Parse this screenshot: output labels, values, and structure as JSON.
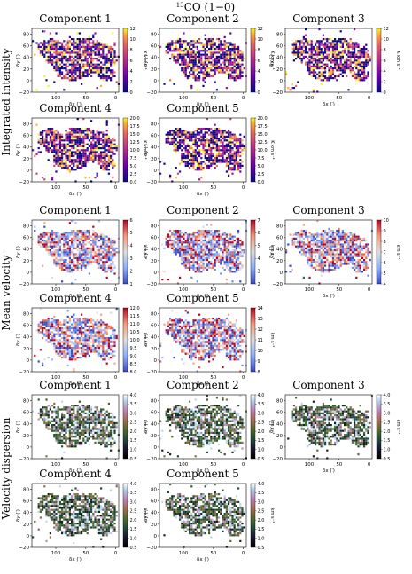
{
  "figure": {
    "title_main": "CO (1−0)",
    "title_sup": "13"
  },
  "rows": [
    {
      "label": "Integrated intensity",
      "cmap": "plasma",
      "unit": "K km s⁻¹"
    },
    {
      "label": "Mean velocity",
      "cmap": "coolwarm",
      "unit": "km s⁻¹"
    },
    {
      "label": "Velocity dispersion",
      "cmap": "cubehelix",
      "unit": "km s⁻¹"
    }
  ],
  "chart_data": [
    {
      "type": "heatmap",
      "row": 0,
      "title": "Component 1",
      "xlabel": "δx (′)",
      "ylabel": "δy (′)",
      "xticks": [
        "100",
        "50",
        "0"
      ],
      "yticks": [
        "80",
        "60",
        "40",
        "20",
        "0",
        "−20"
      ],
      "xlim": [
        140,
        -5
      ],
      "ylim": [
        -20,
        90
      ],
      "colorbar": {
        "min": 0,
        "max": 12,
        "ticks": [
          "12",
          "10",
          "8",
          "6",
          "4",
          "2",
          "0"
        ],
        "label": "K km s⁻¹"
      }
    },
    {
      "type": "heatmap",
      "row": 0,
      "title": "Component 2",
      "xlabel": "δx (′)",
      "ylabel": "δy (′)",
      "xticks": [
        "100",
        "50",
        "0"
      ],
      "yticks": [
        "80",
        "60",
        "40",
        "20",
        "0",
        "−20"
      ],
      "xlim": [
        140,
        -5
      ],
      "ylim": [
        -20,
        90
      ],
      "colorbar": {
        "min": 0,
        "max": 12,
        "ticks": [
          "12",
          "10",
          "8",
          "6",
          "4",
          "2",
          "0"
        ],
        "label": "K km s⁻¹"
      }
    },
    {
      "type": "heatmap",
      "row": 0,
      "title": "Component 3",
      "xlabel": "δx (′)",
      "ylabel": "δy (′)",
      "xticks": [
        "100",
        "50",
        "0"
      ],
      "yticks": [
        "80",
        "60",
        "40",
        "20",
        "0",
        "−20"
      ],
      "xlim": [
        140,
        -5
      ],
      "ylim": [
        -20,
        90
      ],
      "colorbar": {
        "min": 0,
        "max": 12,
        "ticks": [
          "12",
          "10",
          "8",
          "6",
          "4",
          "2",
          "0"
        ],
        "label": "K km s⁻¹"
      }
    },
    {
      "type": "heatmap",
      "row": 0,
      "title": "Component 4",
      "xlabel": "δx (′)",
      "ylabel": "δy (′)",
      "xticks": [
        "100",
        "50",
        "0"
      ],
      "yticks": [
        "80",
        "60",
        "40",
        "20",
        "0",
        "−20"
      ],
      "xlim": [
        140,
        -5
      ],
      "ylim": [
        -20,
        90
      ],
      "colorbar": {
        "min": 0,
        "max": 20,
        "ticks": [
          "20.0",
          "17.5",
          "15.0",
          "12.5",
          "10.0",
          "7.5",
          "5.0",
          "2.5",
          "0.0"
        ],
        "label": "K km s⁻¹"
      }
    },
    {
      "type": "heatmap",
      "row": 0,
      "title": "Component 5",
      "xlabel": "δx (′)",
      "ylabel": "δy (′)",
      "xticks": [
        "100",
        "50",
        "0"
      ],
      "yticks": [
        "80",
        "60",
        "40",
        "20",
        "0",
        "−20"
      ],
      "xlim": [
        140,
        -5
      ],
      "ylim": [
        -20,
        90
      ],
      "colorbar": {
        "min": 0,
        "max": 20,
        "ticks": [
          "20.0",
          "17.5",
          "15.0",
          "12.5",
          "10.0",
          "7.5",
          "5.0",
          "2.5",
          "0.0"
        ],
        "label": "K km s⁻¹"
      }
    },
    {
      "type": "heatmap",
      "row": 1,
      "title": "Component 1",
      "xlabel": "δx (′)",
      "ylabel": "δy (′)",
      "xticks": [
        "100",
        "50",
        "0"
      ],
      "yticks": [
        "80",
        "60",
        "40",
        "20",
        "0",
        "−20"
      ],
      "xlim": [
        140,
        -5
      ],
      "ylim": [
        -20,
        90
      ],
      "colorbar": {
        "min": 1,
        "max": 6,
        "ticks": [
          "6",
          "5",
          "4",
          "3",
          "2",
          "1"
        ],
        "label": "km s⁻¹"
      }
    },
    {
      "type": "heatmap",
      "row": 1,
      "title": "Component 2",
      "xlabel": "δx (′)",
      "ylabel": "δy (′)",
      "xticks": [
        "100",
        "50",
        "0"
      ],
      "yticks": [
        "80",
        "60",
        "40",
        "20",
        "0",
        "−20"
      ],
      "xlim": [
        140,
        -5
      ],
      "ylim": [
        -20,
        90
      ],
      "colorbar": {
        "min": 2,
        "max": 7,
        "ticks": [
          "7",
          "6",
          "5",
          "4",
          "3",
          "2"
        ],
        "label": "km s⁻¹"
      }
    },
    {
      "type": "heatmap",
      "row": 1,
      "title": "Component 3",
      "xlabel": "δx (′)",
      "ylabel": "δy (′)",
      "xticks": [
        "100",
        "50",
        "0"
      ],
      "yticks": [
        "80",
        "60",
        "40",
        "20",
        "0",
        "−20"
      ],
      "xlim": [
        140,
        -5
      ],
      "ylim": [
        -20,
        90
      ],
      "colorbar": {
        "min": 4,
        "max": 10,
        "ticks": [
          "10",
          "9",
          "8",
          "7",
          "6",
          "5",
          "4"
        ],
        "label": "km s⁻¹"
      }
    },
    {
      "type": "heatmap",
      "row": 1,
      "title": "Component 4",
      "xlabel": "δx (′)",
      "ylabel": "δy (′)",
      "xticks": [
        "100",
        "50",
        "0"
      ],
      "yticks": [
        "80",
        "60",
        "40",
        "20",
        "0",
        "−20"
      ],
      "xlim": [
        140,
        -5
      ],
      "ylim": [
        -20,
        90
      ],
      "colorbar": {
        "min": 8,
        "max": 12,
        "ticks": [
          "12.0",
          "11.5",
          "11.0",
          "10.5",
          "10.0",
          "9.5",
          "9.0",
          "8.5",
          "8.0"
        ],
        "label": "km s⁻¹"
      }
    },
    {
      "type": "heatmap",
      "row": 1,
      "title": "Component 5",
      "xlabel": "δx (′)",
      "ylabel": "δy (′)",
      "xticks": [
        "100",
        "50",
        "0"
      ],
      "yticks": [
        "80",
        "60",
        "40",
        "20",
        "0",
        "−20"
      ],
      "xlim": [
        140,
        -5
      ],
      "ylim": [
        -20,
        90
      ],
      "colorbar": {
        "min": 8,
        "max": 14,
        "ticks": [
          "14",
          "13",
          "12",
          "11",
          "10",
          "9",
          "8"
        ],
        "label": "km s⁻¹"
      }
    },
    {
      "type": "heatmap",
      "row": 2,
      "title": "Component 1",
      "xlabel": "δx (′)",
      "ylabel": "δy (′)",
      "xticks": [
        "100",
        "50",
        "0"
      ],
      "yticks": [
        "80",
        "60",
        "40",
        "20",
        "0",
        "−20"
      ],
      "xlim": [
        140,
        -5
      ],
      "ylim": [
        -20,
        90
      ],
      "colorbar": {
        "min": 0.5,
        "max": 4,
        "ticks": [
          "4.0",
          "3.5",
          "3.0",
          "2.5",
          "2.0",
          "1.5",
          "1.0",
          "0.5"
        ],
        "label": "km s⁻¹"
      }
    },
    {
      "type": "heatmap",
      "row": 2,
      "title": "Component 2",
      "xlabel": "δx (′)",
      "ylabel": "δy (′)",
      "xticks": [
        "100",
        "50",
        "0"
      ],
      "yticks": [
        "80",
        "60",
        "40",
        "20",
        "0",
        "−20"
      ],
      "xlim": [
        140,
        -5
      ],
      "ylim": [
        -20,
        90
      ],
      "colorbar": {
        "min": 0.5,
        "max": 4,
        "ticks": [
          "4.0",
          "3.5",
          "3.0",
          "2.5",
          "2.0",
          "1.5",
          "1.0",
          "0.5"
        ],
        "label": "km s⁻¹"
      }
    },
    {
      "type": "heatmap",
      "row": 2,
      "title": "Component 3",
      "xlabel": "δx (′)",
      "ylabel": "δy (′)",
      "xticks": [
        "100",
        "50",
        "0"
      ],
      "yticks": [
        "80",
        "60",
        "40",
        "20",
        "0",
        "−20"
      ],
      "xlim": [
        140,
        -5
      ],
      "ylim": [
        -20,
        90
      ],
      "colorbar": {
        "min": 0.5,
        "max": 4,
        "ticks": [
          "4.0",
          "3.5",
          "3.0",
          "2.5",
          "2.0",
          "1.5",
          "1.0",
          "0.5"
        ],
        "label": "km s⁻¹"
      }
    },
    {
      "type": "heatmap",
      "row": 2,
      "title": "Component 4",
      "xlabel": "δx (′)",
      "ylabel": "δy (′)",
      "xticks": [
        "100",
        "50",
        "0"
      ],
      "yticks": [
        "80",
        "60",
        "40",
        "20",
        "0",
        "−20"
      ],
      "xlim": [
        140,
        -5
      ],
      "ylim": [
        -20,
        90
      ],
      "colorbar": {
        "min": 0.5,
        "max": 4,
        "ticks": [
          "4.0",
          "3.5",
          "3.0",
          "2.5",
          "2.0",
          "1.5",
          "1.0",
          "0.5"
        ],
        "label": "km s⁻¹"
      }
    },
    {
      "type": "heatmap",
      "row": 2,
      "title": "Component 5",
      "xlabel": "δx (′)",
      "ylabel": "δy (′)",
      "xticks": [
        "100",
        "50",
        "0"
      ],
      "yticks": [
        "80",
        "60",
        "40",
        "20",
        "0",
        "−20"
      ],
      "xlim": [
        140,
        -5
      ],
      "ylim": [
        -20,
        90
      ],
      "colorbar": {
        "min": 0.5,
        "max": 4,
        "ticks": [
          "4.0",
          "3.5",
          "3.0",
          "2.5",
          "2.0",
          "1.5",
          "1.0",
          "0.5"
        ],
        "label": "km s⁻¹"
      }
    }
  ]
}
